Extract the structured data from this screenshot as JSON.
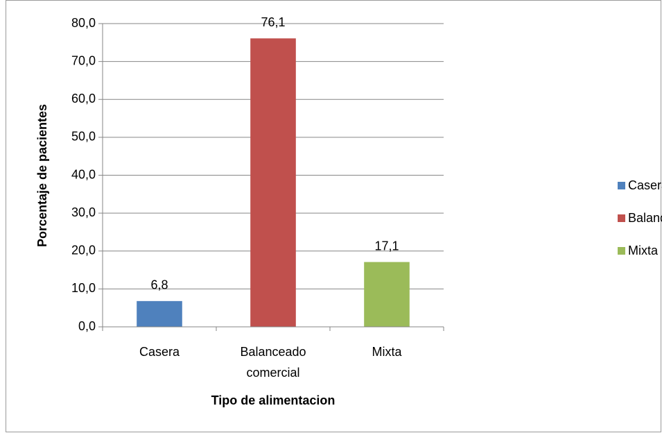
{
  "chart_data": {
    "type": "bar",
    "categories": [
      "Casera",
      "Balanceado comercial",
      "Mixta"
    ],
    "values": [
      6.8,
      76.1,
      17.1
    ],
    "value_labels": [
      "6,8",
      "76,1",
      "17,1"
    ],
    "colors": [
      "#4f81bd",
      "#c0504d",
      "#9bbb59"
    ],
    "xlabel": "Tipo de alimentacion",
    "ylabel": "Porcentaje de pacientes",
    "ylim": [
      0,
      80
    ],
    "yticks": [
      {
        "value": 0,
        "label": "0,0"
      },
      {
        "value": 10,
        "label": "10,0"
      },
      {
        "value": 20,
        "label": "20,0"
      },
      {
        "value": 30,
        "label": "30,0"
      },
      {
        "value": 40,
        "label": "40,0"
      },
      {
        "value": 50,
        "label": "50,0"
      },
      {
        "value": 60,
        "label": "60,0"
      },
      {
        "value": 70,
        "label": "70,0"
      },
      {
        "value": 80,
        "label": "80,0"
      }
    ],
    "grid": true,
    "legend": "right"
  }
}
